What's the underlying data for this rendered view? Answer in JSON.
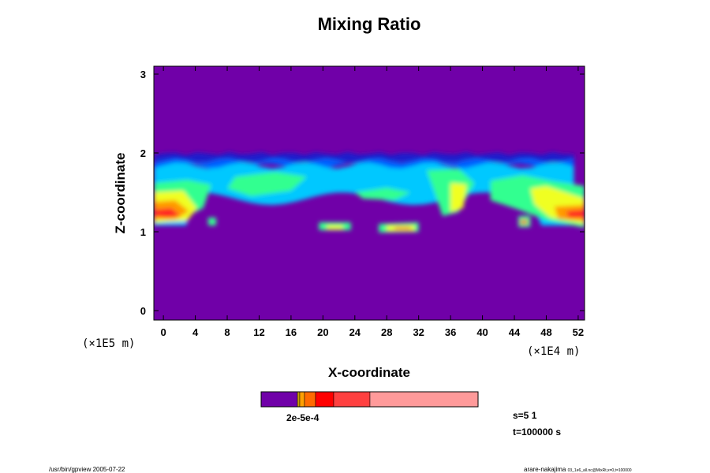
{
  "chart_data": {
    "type": "heatmap",
    "title": "Mixing Ratio",
    "xlabel": "X-coordinate",
    "ylabel": "Z-coordinate",
    "x_unit": "(×1E4 m)",
    "y_unit": "(×1E5 m)",
    "xlim": [
      -1.2,
      52.8
    ],
    "ylim": [
      -0.12,
      3.1
    ],
    "x_ticks": [
      0,
      4,
      8,
      12,
      16,
      20,
      24,
      28,
      32,
      36,
      40,
      44,
      48,
      52
    ],
    "y_ticks": [
      0,
      1,
      2,
      3
    ],
    "background_color": "#7000a8",
    "layer": {
      "z_top": 2.0,
      "z_bottom": 1.0,
      "description_levels": [
        "background",
        "dark-blue",
        "blue",
        "cyan",
        "green",
        "yellow",
        "orange",
        "red",
        "pink"
      ]
    },
    "colorbar": {
      "label": "2e-5e-4",
      "colors": [
        "#7000a8",
        "#c8a000",
        "#ffa000",
        "#ff6a00",
        "#ff0000",
        "#ff4040",
        "#ff9a9a"
      ]
    },
    "annotations": {
      "step": "s=5 1",
      "time": "t=100000 s"
    }
  },
  "footer": {
    "left": "/usr/bin/gpview 2005-07-22",
    "right_main": "arare-nakajima",
    "right_sub": "03_1e6_all.nc@MixRt,x=0,t=100000"
  }
}
